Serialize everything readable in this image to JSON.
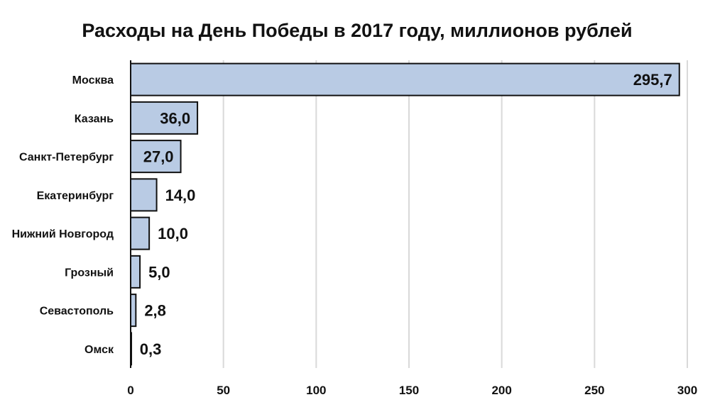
{
  "chart_data": {
    "type": "bar",
    "orientation": "horizontal",
    "title": "Расходы на День Победы в 2017 году, миллионов рублей",
    "categories": [
      "Москва",
      "Казань",
      "Санкт-Петербург",
      "Екатеринбург",
      "Нижний Новгород",
      "Грозный",
      "Севастополь",
      "Омск"
    ],
    "values": [
      295.7,
      36.0,
      27.0,
      14.0,
      10.0,
      5.0,
      2.8,
      0.3
    ],
    "value_labels": [
      "295,7",
      "36,0",
      "27,0",
      "14,0",
      "10,0",
      "5,0",
      "2,8",
      "0,3"
    ],
    "xlim": [
      0,
      300
    ],
    "xticks": [
      0,
      50,
      100,
      150,
      200,
      250,
      300
    ],
    "grid": "vertical",
    "legend": "none",
    "colors": {
      "bar_fill": "#b9cbe4",
      "bar_stroke": "#111111",
      "grid": "#d9d9d9",
      "axis": "#111111"
    }
  }
}
